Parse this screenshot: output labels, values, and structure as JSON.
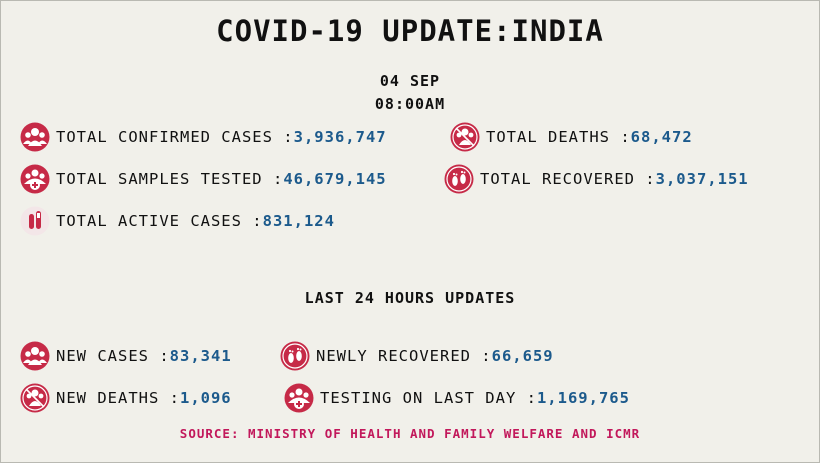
{
  "header": {
    "title": "COVID-19 UPDATE:INDIA",
    "date": "04 SEP",
    "time": "08:00AM"
  },
  "totals": {
    "confirmed": {
      "label": "TOTAL CONFIRMED CASES : ",
      "value": "3,936,747",
      "icon": "people-group-icon"
    },
    "deaths": {
      "label": "TOTAL DEATHS : ",
      "value": "68,472",
      "icon": "people-cross-icon"
    },
    "samples": {
      "label": "TOTAL SAMPLES TESTED : ",
      "value": "46,679,145",
      "icon": "people-plus-icon"
    },
    "recovered": {
      "label": "TOTAL RECOVERED : ",
      "value": "3,037,151",
      "icon": "footprints-icon"
    },
    "active": {
      "label": "TOTAL ACTIVE CASES : ",
      "value": "831,124",
      "icon": "test-tube-icon"
    }
  },
  "last24": {
    "title": "LAST 24 HOURS UPDATES",
    "new_cases": {
      "label": "NEW CASES : ",
      "value": "83,341",
      "icon": "people-group-icon"
    },
    "newly_recovered": {
      "label": "NEWLY RECOVERED : ",
      "value": "66,659",
      "icon": "footprints-icon"
    },
    "new_deaths": {
      "label": "NEW DEATHS : ",
      "value": "1,096",
      "icon": "people-cross-icon"
    },
    "testing_last_day": {
      "label": "TESTING ON LAST DAY : ",
      "value": "1,169,765",
      "icon": "people-plus-icon"
    }
  },
  "source": "SOURCE: MINISTRY OF HEALTH AND FAMILY WELFARE AND ICMR",
  "colors": {
    "value": "#1c5a8c",
    "icon": "#c62a47",
    "source": "#c2185b"
  }
}
